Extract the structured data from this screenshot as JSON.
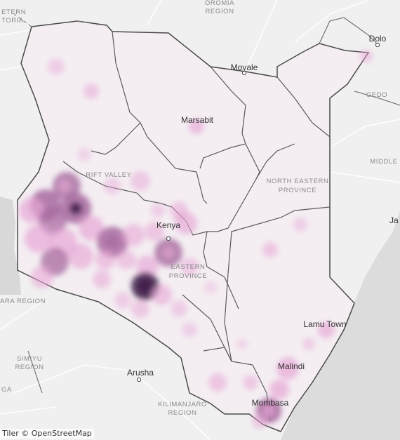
{
  "map": {
    "colors": {
      "land": "#f2f2f2",
      "water": "#dddddd",
      "kenya_fill": "#f4eef2",
      "border": "#4a4a4a",
      "road": "#ffffff",
      "heat_light": "#e7a6d6",
      "heat_dark": "#3f1f4a"
    },
    "regions": {
      "oromia": "OROMIA REGION",
      "equatoria": "ETERN\nTORIA",
      "gedo": "GEDO",
      "middle": "MIDDLE",
      "rift_valley": "RIFT VALLEY",
      "north_eastern": "NORTH EASTERN\nPROVINCE",
      "eastern": "EASTERN\nPROVINCE",
      "mara": "ARA REGION",
      "simiyu": "SIMIYU\nREGION",
      "kilimanjaro": "KILIMANJARO\nREGION",
      "ga": "GA"
    },
    "cities": {
      "dolo": "Dolo",
      "moyale": "Moyale",
      "marsabit": "Marsabit",
      "kenya": "Kenya",
      "arusha": "Arusha",
      "lamu": "Lamu Town",
      "malindi": "Malindi",
      "mombasa": "Mombasa",
      "ja": "Ja"
    }
  },
  "attribution": "Tiler  © OpenStreetMap"
}
